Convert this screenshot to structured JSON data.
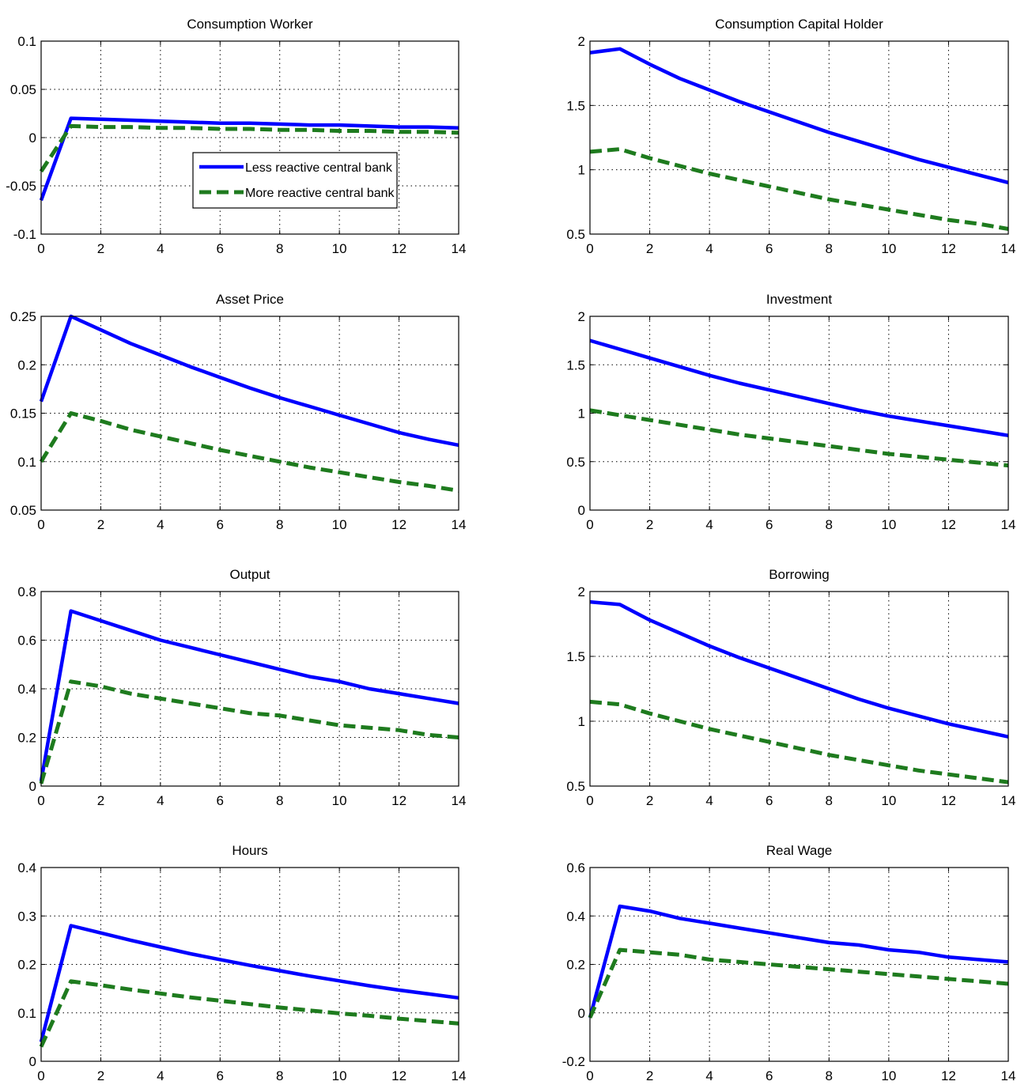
{
  "colors": {
    "less_reactive": "#0000FF",
    "more_reactive": "#1E7B1E",
    "grid": "#000000",
    "background": "#FFFFFF"
  },
  "legend": {
    "entries": [
      "Less reactive central bank",
      "More reactive central bank"
    ]
  },
  "chart_data": [
    {
      "type": "line",
      "title": "Consumption Worker",
      "x": [
        0,
        1,
        2,
        3,
        4,
        5,
        6,
        7,
        8,
        9,
        10,
        11,
        12,
        13,
        14
      ],
      "xlim": [
        0,
        14
      ],
      "ylim": [
        -0.1,
        0.1
      ],
      "xticks": [
        "0",
        "2",
        "4",
        "6",
        "8",
        "10",
        "12",
        "14"
      ],
      "yticks": [
        "-0.1",
        "-0.05",
        "0",
        "0.05",
        "0.1"
      ],
      "ytick_values": [
        -0.1,
        -0.05,
        0,
        0.05,
        0.1
      ],
      "grid": true,
      "legend": "inside-center-right",
      "series": [
        {
          "name": "Less reactive central bank",
          "style": "solid",
          "values": [
            -0.065,
            0.02,
            0.019,
            0.018,
            0.017,
            0.016,
            0.015,
            0.015,
            0.014,
            0.013,
            0.013,
            0.012,
            0.011,
            0.011,
            0.01
          ]
        },
        {
          "name": "More reactive central bank",
          "style": "dashed",
          "values": [
            -0.035,
            0.012,
            0.011,
            0.011,
            0.01,
            0.01,
            0.009,
            0.009,
            0.008,
            0.008,
            0.007,
            0.007,
            0.006,
            0.006,
            0.005
          ]
        }
      ]
    },
    {
      "type": "line",
      "title": "Consumption Capital Holder",
      "x": [
        0,
        1,
        2,
        3,
        4,
        5,
        6,
        7,
        8,
        9,
        10,
        11,
        12,
        13,
        14
      ],
      "xlim": [
        0,
        14
      ],
      "ylim": [
        0.5,
        2
      ],
      "xticks": [
        "0",
        "2",
        "4",
        "6",
        "8",
        "10",
        "12",
        "14"
      ],
      "yticks": [
        "0.5",
        "1",
        "1.5",
        "2"
      ],
      "ytick_values": [
        0.5,
        1,
        1.5,
        2
      ],
      "grid": true,
      "series": [
        {
          "name": "Less reactive central bank",
          "style": "solid",
          "values": [
            1.91,
            1.94,
            1.82,
            1.71,
            1.62,
            1.53,
            1.45,
            1.37,
            1.29,
            1.22,
            1.15,
            1.08,
            1.02,
            0.96,
            0.9
          ]
        },
        {
          "name": "More reactive central bank",
          "style": "dashed",
          "values": [
            1.14,
            1.16,
            1.09,
            1.03,
            0.97,
            0.92,
            0.87,
            0.82,
            0.77,
            0.73,
            0.69,
            0.65,
            0.61,
            0.58,
            0.54
          ]
        }
      ]
    },
    {
      "type": "line",
      "title": "Asset Price",
      "x": [
        0,
        1,
        2,
        3,
        4,
        5,
        6,
        7,
        8,
        9,
        10,
        11,
        12,
        13,
        14
      ],
      "xlim": [
        0,
        14
      ],
      "ylim": [
        0.05,
        0.25
      ],
      "xticks": [
        "0",
        "2",
        "4",
        "6",
        "8",
        "10",
        "12",
        "14"
      ],
      "yticks": [
        "0.05",
        "0.1",
        "0.15",
        "0.2",
        "0.25"
      ],
      "ytick_values": [
        0.05,
        0.1,
        0.15,
        0.2,
        0.25
      ],
      "grid": true,
      "series": [
        {
          "name": "Less reactive central bank",
          "style": "solid",
          "values": [
            0.162,
            0.25,
            0.236,
            0.222,
            0.21,
            0.198,
            0.187,
            0.176,
            0.166,
            0.157,
            0.148,
            0.139,
            0.13,
            0.123,
            0.117
          ]
        },
        {
          "name": "More reactive central bank",
          "style": "dashed",
          "values": [
            0.1,
            0.15,
            0.142,
            0.133,
            0.126,
            0.119,
            0.112,
            0.106,
            0.1,
            0.094,
            0.089,
            0.084,
            0.079,
            0.075,
            0.07
          ]
        }
      ]
    },
    {
      "type": "line",
      "title": "Investment",
      "x": [
        0,
        1,
        2,
        3,
        4,
        5,
        6,
        7,
        8,
        9,
        10,
        11,
        12,
        13,
        14
      ],
      "xlim": [
        0,
        14
      ],
      "ylim": [
        0,
        2
      ],
      "xticks": [
        "0",
        "2",
        "4",
        "6",
        "8",
        "10",
        "12",
        "14"
      ],
      "yticks": [
        "0",
        "0.5",
        "1",
        "1.5",
        "2"
      ],
      "ytick_values": [
        0,
        0.5,
        1,
        1.5,
        2
      ],
      "grid": true,
      "series": [
        {
          "name": "Less reactive central bank",
          "style": "solid",
          "values": [
            1.75,
            1.66,
            1.57,
            1.48,
            1.39,
            1.31,
            1.24,
            1.17,
            1.1,
            1.03,
            0.97,
            0.92,
            0.87,
            0.82,
            0.77
          ]
        },
        {
          "name": "More reactive central bank",
          "style": "dashed",
          "values": [
            1.03,
            0.98,
            0.93,
            0.88,
            0.83,
            0.78,
            0.74,
            0.7,
            0.66,
            0.62,
            0.58,
            0.55,
            0.52,
            0.49,
            0.46
          ]
        }
      ]
    },
    {
      "type": "line",
      "title": "Output",
      "x": [
        0,
        1,
        2,
        3,
        4,
        5,
        6,
        7,
        8,
        9,
        10,
        11,
        12,
        13,
        14
      ],
      "xlim": [
        0,
        14
      ],
      "ylim": [
        0,
        0.8
      ],
      "xticks": [
        "0",
        "2",
        "4",
        "6",
        "8",
        "10",
        "12",
        "14"
      ],
      "yticks": [
        "0",
        "0.2",
        "0.4",
        "0.6",
        "0.8"
      ],
      "ytick_values": [
        0,
        0.2,
        0.4,
        0.6,
        0.8
      ],
      "grid": true,
      "series": [
        {
          "name": "Less reactive central bank",
          "style": "solid",
          "values": [
            0.02,
            0.72,
            0.68,
            0.64,
            0.6,
            0.57,
            0.54,
            0.51,
            0.48,
            0.45,
            0.43,
            0.4,
            0.38,
            0.36,
            0.34
          ]
        },
        {
          "name": "More reactive central bank",
          "style": "dashed",
          "values": [
            0.01,
            0.43,
            0.41,
            0.38,
            0.36,
            0.34,
            0.32,
            0.3,
            0.29,
            0.27,
            0.25,
            0.24,
            0.23,
            0.21,
            0.2
          ]
        }
      ]
    },
    {
      "type": "line",
      "title": "Borrowing",
      "x": [
        0,
        1,
        2,
        3,
        4,
        5,
        6,
        7,
        8,
        9,
        10,
        11,
        12,
        13,
        14
      ],
      "xlim": [
        0,
        14
      ],
      "ylim": [
        0.5,
        2
      ],
      "xticks": [
        "0",
        "2",
        "4",
        "6",
        "8",
        "10",
        "12",
        "14"
      ],
      "yticks": [
        "0.5",
        "1",
        "1.5",
        "2"
      ],
      "ytick_values": [
        0.5,
        1,
        1.5,
        2
      ],
      "grid": true,
      "series": [
        {
          "name": "Less reactive central bank",
          "style": "solid",
          "values": [
            1.92,
            1.9,
            1.78,
            1.68,
            1.58,
            1.49,
            1.41,
            1.33,
            1.25,
            1.17,
            1.1,
            1.04,
            0.98,
            0.93,
            0.88
          ]
        },
        {
          "name": "More reactive central bank",
          "style": "dashed",
          "values": [
            1.15,
            1.13,
            1.06,
            1.0,
            0.94,
            0.89,
            0.84,
            0.79,
            0.74,
            0.7,
            0.66,
            0.62,
            0.59,
            0.56,
            0.53
          ]
        }
      ]
    },
    {
      "type": "line",
      "title": "Hours",
      "x": [
        0,
        1,
        2,
        3,
        4,
        5,
        6,
        7,
        8,
        9,
        10,
        11,
        12,
        13,
        14
      ],
      "xlim": [
        0,
        14
      ],
      "ylim": [
        0,
        0.4
      ],
      "xticks": [
        "0",
        "2",
        "4",
        "6",
        "8",
        "10",
        "12",
        "14"
      ],
      "yticks": [
        "0",
        "0.1",
        "0.2",
        "0.3",
        "0.4"
      ],
      "ytick_values": [
        0,
        0.1,
        0.2,
        0.3,
        0.4
      ],
      "grid": true,
      "series": [
        {
          "name": "Less reactive central bank",
          "style": "solid",
          "values": [
            0.04,
            0.28,
            0.265,
            0.25,
            0.236,
            0.222,
            0.21,
            0.198,
            0.187,
            0.176,
            0.166,
            0.156,
            0.147,
            0.139,
            0.131
          ]
        },
        {
          "name": "More reactive central bank",
          "style": "dashed",
          "values": [
            0.03,
            0.165,
            0.157,
            0.148,
            0.14,
            0.132,
            0.125,
            0.118,
            0.111,
            0.105,
            0.099,
            0.094,
            0.088,
            0.083,
            0.078
          ]
        }
      ]
    },
    {
      "type": "line",
      "title": "Real Wage",
      "x": [
        0,
        1,
        2,
        3,
        4,
        5,
        6,
        7,
        8,
        9,
        10,
        11,
        12,
        13,
        14
      ],
      "xlim": [
        0,
        14
      ],
      "ylim": [
        -0.2,
        0.6
      ],
      "xticks": [
        "0",
        "2",
        "4",
        "6",
        "8",
        "10",
        "12",
        "14"
      ],
      "yticks": [
        "-0.2",
        "0",
        "0.2",
        "0.4",
        "0.6"
      ],
      "ytick_values": [
        -0.2,
        0,
        0.2,
        0.4,
        0.6
      ],
      "grid": true,
      "series": [
        {
          "name": "Less reactive central bank",
          "style": "solid",
          "values": [
            -0.02,
            0.44,
            0.42,
            0.39,
            0.37,
            0.35,
            0.33,
            0.31,
            0.29,
            0.28,
            0.26,
            0.25,
            0.23,
            0.22,
            0.21
          ]
        },
        {
          "name": "More reactive central bank",
          "style": "dashed",
          "values": [
            -0.02,
            0.26,
            0.25,
            0.24,
            0.22,
            0.21,
            0.2,
            0.19,
            0.18,
            0.17,
            0.16,
            0.15,
            0.14,
            0.13,
            0.12
          ]
        }
      ]
    }
  ]
}
